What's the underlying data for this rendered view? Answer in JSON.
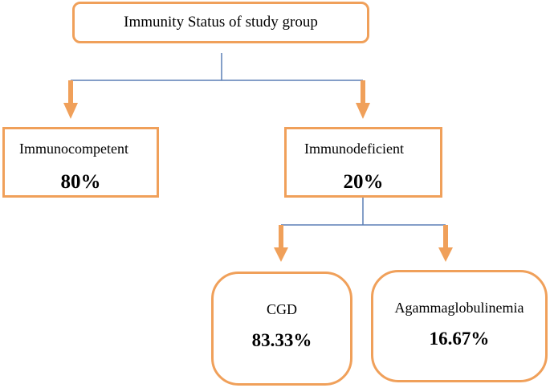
{
  "title": "Immunity Status of study group",
  "nodes": {
    "immunocompetent": {
      "label": "Immunocompetent",
      "value": "80%"
    },
    "immunodeficient": {
      "label": "Immunodeficient",
      "value": "20%"
    },
    "cgd": {
      "label": "CGD",
      "value": "83.33%"
    },
    "agammaglobulinemia": {
      "label": "Agammaglobulinemia",
      "value": "16.67%"
    }
  },
  "colors": {
    "box_border": "#f0a05a",
    "arrow": "#f0a05a",
    "connector": "#5b7fb5"
  }
}
